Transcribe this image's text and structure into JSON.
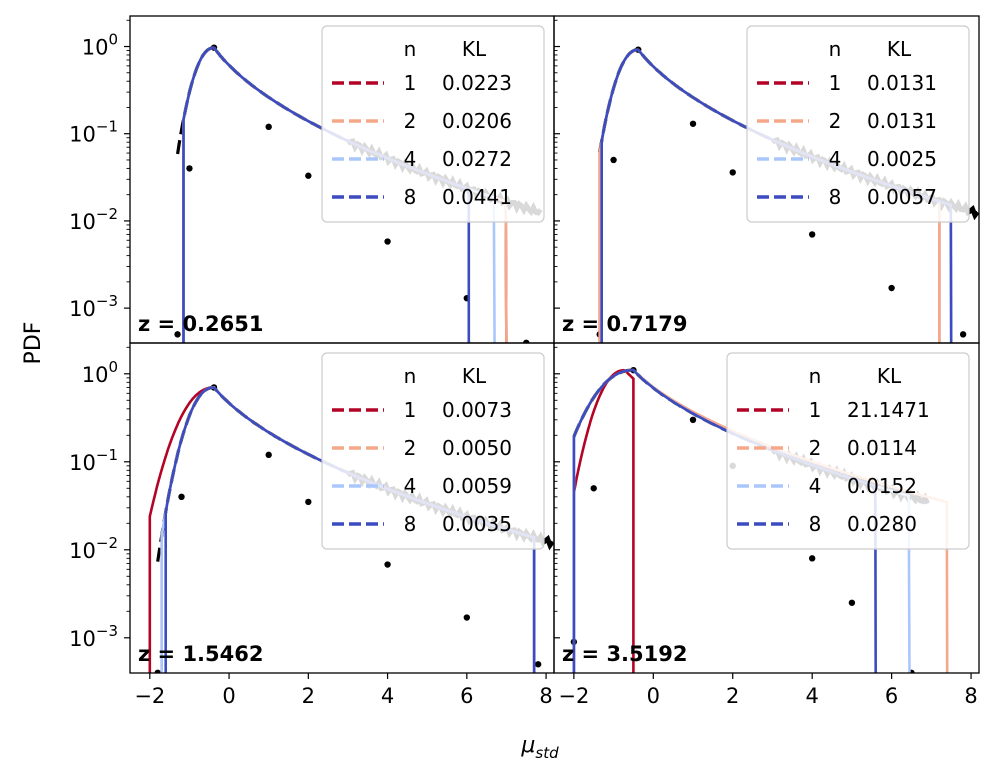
{
  "chart_data": {
    "type": "line",
    "ylabel": "PDF",
    "xlabel_main": "μ",
    "xlabel_sub": "std",
    "xlim": [
      -2.5,
      8.2
    ],
    "ylim_log10": [
      -3.4,
      0.35
    ],
    "xticks": [
      -2,
      0,
      2,
      4,
      6,
      8
    ],
    "xtick_labels": [
      "−2",
      "0",
      "2",
      "4",
      "6",
      "8"
    ],
    "yticks": [
      {
        "value": 1,
        "base": "10",
        "exp": "0"
      },
      {
        "value": 0.1,
        "base": "10",
        "exp": "−1"
      },
      {
        "value": 0.01,
        "base": "10",
        "exp": "−2"
      },
      {
        "value": 0.001,
        "base": "10",
        "exp": "−3"
      }
    ],
    "legend_header": {
      "n": "n",
      "kl": "KL"
    },
    "series_colors": {
      "1": "#b40426",
      "2": "#f5a889",
      "4": "#aac7fd",
      "8": "#3b4cc0",
      "reference": "#000000"
    },
    "panels": [
      {
        "z_label": "z = 0.2651",
        "peak": -0.38,
        "peak_pdf": 0.97,
        "w_left": 0.42,
        "w_right": 0.95,
        "data_points": [
          [
            -1.3,
            0.0005
          ],
          [
            -1.0,
            0.04
          ],
          [
            -0.38,
            0.97
          ],
          [
            1.0,
            0.12
          ],
          [
            2.0,
            0.033
          ],
          [
            4.0,
            0.0058
          ],
          [
            6.0,
            0.0013
          ],
          [
            7.5,
            0.0004
          ]
        ],
        "fits": [
          {
            "n": "1",
            "kl": "0.0223",
            "x_start": -1.15,
            "x_end": 7.0
          },
          {
            "n": "2",
            "kl": "0.0206",
            "x_start": -1.15,
            "x_end": 7.0
          },
          {
            "n": "4",
            "kl": "0.0272",
            "x_start": -1.15,
            "x_end": 6.7
          },
          {
            "n": "8",
            "kl": "0.0441",
            "x_start": -1.15,
            "x_end": 6.05
          }
        ]
      },
      {
        "z_label": "z = 0.7179",
        "peak": -0.38,
        "peak_pdf": 0.92,
        "w_left": 0.45,
        "w_right": 1.0,
        "data_points": [
          [
            -1.35,
            0.0005
          ],
          [
            -1.0,
            0.05
          ],
          [
            -0.38,
            0.92
          ],
          [
            1.0,
            0.13
          ],
          [
            2.0,
            0.036
          ],
          [
            4.0,
            0.007
          ],
          [
            6.0,
            0.0017
          ],
          [
            7.8,
            0.0005
          ]
        ],
        "fits": [
          {
            "n": "1",
            "kl": "0.0131",
            "x_start": -1.35,
            "x_end": 7.2
          },
          {
            "n": "2",
            "kl": "0.0131",
            "x_start": -1.35,
            "x_end": 7.2
          },
          {
            "n": "4",
            "kl": "0.0025",
            "x_start": -1.3,
            "x_end": 7.5
          },
          {
            "n": "8",
            "kl": "0.0057",
            "x_start": -1.3,
            "x_end": 7.5
          }
        ]
      },
      {
        "z_label": "z = 1.5462",
        "peak": -0.38,
        "peak_pdf": 0.7,
        "w_left": 0.52,
        "w_right": 1.1,
        "data_points": [
          [
            -1.8,
            0.0004
          ],
          [
            -1.2,
            0.04
          ],
          [
            -0.38,
            0.7
          ],
          [
            1.0,
            0.12
          ],
          [
            2.0,
            0.035
          ],
          [
            4.0,
            0.0068
          ],
          [
            6.0,
            0.0017
          ],
          [
            7.8,
            0.0005
          ]
        ],
        "fits": [
          {
            "n": "1",
            "kl": "0.0073",
            "x_start": -2.0,
            "x_end": 7.7
          },
          {
            "n": "2",
            "kl": "0.0050",
            "x_start": -1.7,
            "x_end": 7.7
          },
          {
            "n": "4",
            "kl": "0.0059",
            "x_start": -1.7,
            "x_end": 7.7
          },
          {
            "n": "8",
            "kl": "0.0035",
            "x_start": -1.6,
            "x_end": 7.7
          }
        ]
      },
      {
        "z_label": "z = 3.5192",
        "peak": -0.5,
        "peak_pdf": 1.1,
        "w_left": 0.85,
        "w_right": 1.25,
        "data_points": [
          [
            -2.0,
            0.0009
          ],
          [
            -1.5,
            0.05
          ],
          [
            -0.5,
            1.1
          ],
          [
            1.0,
            0.3
          ],
          [
            2.0,
            0.09
          ],
          [
            4.0,
            0.008
          ],
          [
            5.0,
            0.0025
          ],
          [
            6.5,
            0.0004
          ]
        ],
        "fits": [
          {
            "n": "1",
            "kl": "21.1471",
            "x_start": -2.0,
            "x_end": -0.5
          },
          {
            "n": "2",
            "kl": "0.0114",
            "x_start": -2.0,
            "x_end": 7.4
          },
          {
            "n": "4",
            "kl": "0.0152",
            "x_start": -2.0,
            "x_end": 6.45
          },
          {
            "n": "8",
            "kl": "0.0280",
            "x_start": -2.0,
            "x_end": 5.6
          }
        ]
      }
    ]
  }
}
